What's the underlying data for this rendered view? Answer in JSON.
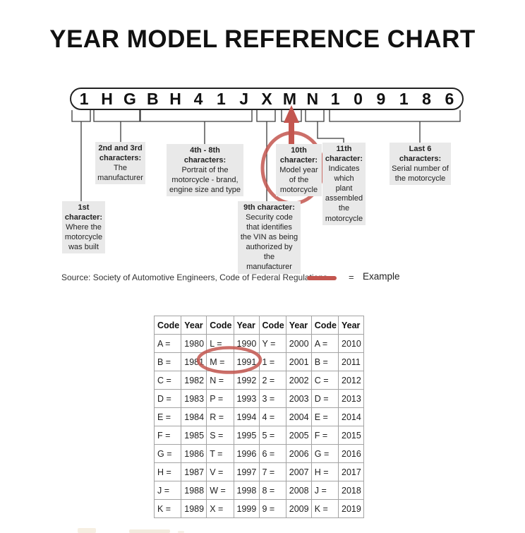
{
  "title": "YEAR MODEL REFERENCE CHART",
  "vin": {
    "characters": [
      "1",
      "H",
      "G",
      "B",
      "H",
      "4",
      "1",
      "J",
      "X",
      "M",
      "N",
      "1",
      "0",
      "9",
      "1",
      "8",
      "6"
    ]
  },
  "callouts": {
    "first": {
      "heading": "1st character:",
      "body": "Where the motorcycle was built"
    },
    "second_third": {
      "heading": "2nd and 3rd characters:",
      "body": "The manufacturer"
    },
    "fourth_eighth": {
      "heading": "4th - 8th characters:",
      "body": "Portrait of the motorcycle - brand, engine size and type"
    },
    "ninth": {
      "heading": "9th character:",
      "body": "Security code that identifies the VIN as being authorized by the manufacturer"
    },
    "tenth": {
      "heading": "10th character:",
      "body": "Model year of the motorcycle"
    },
    "eleventh": {
      "heading": "11th character:",
      "body": "Indicates which plant assembled the motorcycle"
    },
    "last_six": {
      "heading": "Last 6 characters:",
      "body": "Serial number of the motorcycle"
    }
  },
  "source_line": "Source:  Society of Automotive Engineers, Code of Federal Regulations",
  "legend": {
    "equals_sign": "=",
    "label": "Example"
  },
  "colors": {
    "accent_red": "#c3564f",
    "callout_bg": "#e9e9e9",
    "table_border": "#a3a3a3"
  },
  "table": {
    "headers": [
      "Code",
      "Year",
      "Code",
      "Year",
      "Code",
      "Year",
      "Code",
      "Year"
    ],
    "rows": [
      [
        "A =",
        "1980",
        "L =",
        "1990",
        "Y =",
        "2000",
        "A =",
        "2010"
      ],
      [
        "B =",
        "1981",
        "M =",
        "1991",
        "1 =",
        "2001",
        "B =",
        "2011"
      ],
      [
        "C =",
        "1982",
        "N =",
        "1992",
        "2 =",
        "2002",
        "C =",
        "2012"
      ],
      [
        "D =",
        "1983",
        "P =",
        "1993",
        "3 =",
        "2003",
        "D =",
        "2013"
      ],
      [
        "E =",
        "1984",
        "R =",
        "1994",
        "4 =",
        "2004",
        "E =",
        "2014"
      ],
      [
        "F =",
        "1985",
        "S =",
        "1995",
        "5 =",
        "2005",
        "F =",
        "2015"
      ],
      [
        "G =",
        "1986",
        "T =",
        "1996",
        "6 =",
        "2006",
        "G =",
        "2016"
      ],
      [
        "H =",
        "1987",
        "V =",
        "1997",
        "7 =",
        "2007",
        "H =",
        "2017"
      ],
      [
        "J =",
        "1988",
        "W =",
        "1998",
        "8 =",
        "2008",
        "J =",
        "2018"
      ],
      [
        "K =",
        "1989",
        "X =",
        "1999",
        "9 =",
        "2009",
        "K =",
        "2019"
      ]
    ]
  }
}
